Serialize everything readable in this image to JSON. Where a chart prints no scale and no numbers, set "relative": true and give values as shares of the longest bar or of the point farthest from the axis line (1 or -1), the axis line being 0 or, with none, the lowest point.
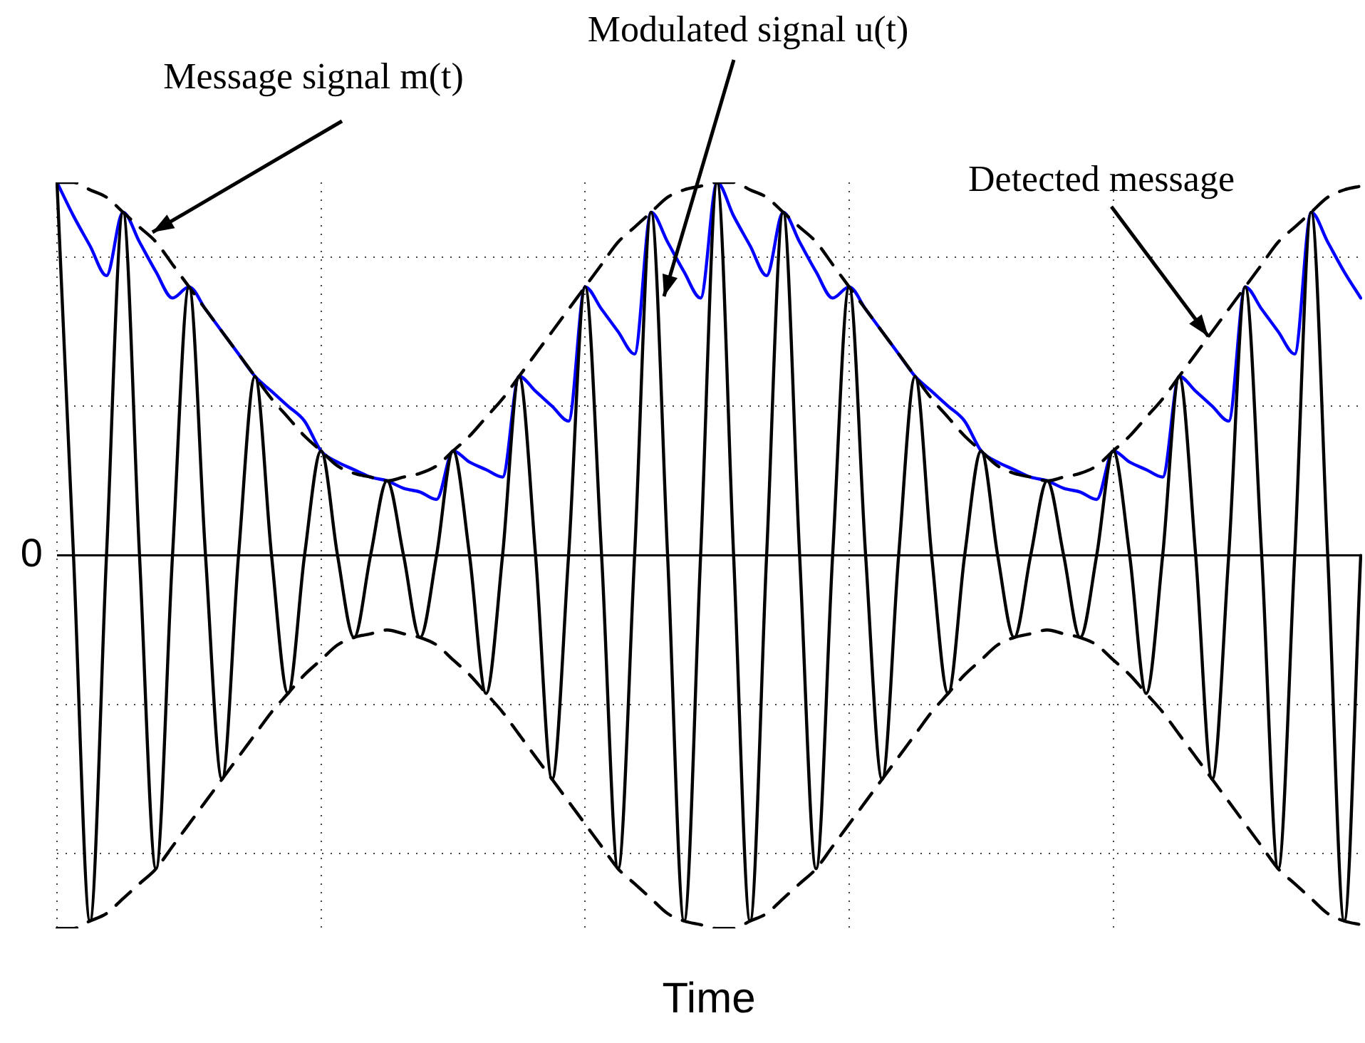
{
  "chart_data": {
    "type": "line",
    "relative": true,
    "xlabel": "Time",
    "grid": true,
    "legend": false,
    "categories": [
      null,
      null,
      null,
      null,
      null,
      null,
      null,
      null,
      null,
      null,
      null,
      null,
      null,
      null,
      null,
      null,
      null,
      null,
      null,
      null,
      null,
      null,
      null,
      null,
      null,
      null,
      null,
      null,
      null,
      null,
      null,
      null,
      null,
      null,
      null,
      null,
      null,
      null,
      null,
      null,
      null,
      null,
      null,
      null,
      null,
      null,
      null,
      null,
      null,
      null,
      null,
      null,
      null,
      null,
      null,
      null,
      null,
      null,
      null,
      null,
      null,
      null,
      null,
      null,
      null,
      null,
      null,
      null,
      null,
      null,
      null,
      null,
      null,
      null,
      null,
      null,
      null,
      null,
      null,
      null
    ],
    "series": [
      {
        "color": "#000000",
        "line_style": "dashed",
        "values": [
          1,
          1,
          0.98,
          0.96,
          0.92,
          0.88,
          0.84,
          0.78,
          0.72,
          0.66,
          0.6,
          0.54,
          0.48,
          0.42,
          0.37,
          0.32,
          0.28,
          0.24,
          0.22,
          0.21,
          0.2,
          0.21,
          0.22,
          0.24,
          0.28,
          0.32,
          0.37,
          0.42,
          0.48,
          0.54,
          0.6,
          0.66,
          0.72,
          0.78,
          0.84,
          0.88,
          0.92,
          0.96,
          0.98,
          0.99,
          1,
          1,
          0.98,
          0.96,
          0.92,
          0.88,
          0.84,
          0.78,
          0.72,
          0.66,
          0.6,
          0.54,
          0.48,
          0.42,
          0.37,
          0.32,
          0.28,
          0.24,
          0.22,
          0.21,
          0.2,
          0.21,
          0.22,
          0.24,
          0.28,
          0.32,
          0.37,
          0.42,
          0.48,
          0.54,
          0.6,
          0.66,
          0.72,
          0.78,
          0.84,
          0.88,
          0.92,
          0.96,
          0.98,
          0.99
        ]
      },
      {
        "color": "#000000",
        "line_style": "dashed",
        "values": [
          -1,
          -1,
          -0.98,
          -0.96,
          -0.92,
          -0.88,
          -0.84,
          -0.78,
          -0.72,
          -0.66,
          -0.6,
          -0.54,
          -0.48,
          -0.42,
          -0.37,
          -0.32,
          -0.28,
          -0.24,
          -0.22,
          -0.21,
          -0.2,
          -0.21,
          -0.22,
          -0.24,
          -0.28,
          -0.32,
          -0.37,
          -0.42,
          -0.48,
          -0.54,
          -0.6,
          -0.66,
          -0.72,
          -0.78,
          -0.84,
          -0.88,
          -0.92,
          -0.96,
          -0.98,
          -0.99,
          -1,
          -1,
          -0.98,
          -0.96,
          -0.92,
          -0.88,
          -0.84,
          -0.78,
          -0.72,
          -0.66,
          -0.6,
          -0.54,
          -0.48,
          -0.42,
          -0.37,
          -0.32,
          -0.28,
          -0.24,
          -0.22,
          -0.21,
          -0.2,
          -0.21,
          -0.22,
          -0.24,
          -0.28,
          -0.32,
          -0.37,
          -0.42,
          -0.48,
          -0.54,
          -0.6,
          -0.66,
          -0.72,
          -0.78,
          -0.84,
          -0.88,
          -0.92,
          -0.96,
          -0.98,
          -0.99
        ]
      },
      {
        "color": "#000000",
        "line_style": "solid",
        "values": [
          1,
          0,
          -0.98,
          0,
          0.92,
          0,
          -0.84,
          0,
          0.72,
          0,
          -0.6,
          0,
          0.48,
          0,
          -0.37,
          0,
          0.28,
          0,
          -0.22,
          0,
          0.2,
          0,
          -0.22,
          0,
          0.28,
          0,
          -0.37,
          0,
          0.48,
          0,
          -0.6,
          0,
          0.72,
          0,
          -0.84,
          0,
          0.92,
          0,
          -0.98,
          0,
          1,
          0,
          -0.98,
          0,
          0.92,
          0,
          -0.84,
          0,
          0.72,
          0,
          -0.6,
          0,
          0.48,
          0,
          -0.37,
          0,
          0.28,
          0,
          -0.22,
          0,
          0.2,
          0,
          -0.22,
          0,
          0.28,
          0,
          -0.37,
          0,
          0.48,
          0,
          -0.6,
          0,
          0.72,
          0,
          -0.84,
          0,
          0.92,
          0,
          -0.98,
          0
        ]
      },
      {
        "color": "#0000ff",
        "line_style": "solid",
        "values": [
          1,
          0.91,
          0.83,
          0.75,
          0.92,
          0.84,
          0.76,
          0.69,
          0.72,
          0.66,
          0.6,
          0.54,
          0.48,
          0.44,
          0.4,
          0.36,
          0.28,
          0.25,
          0.23,
          0.21,
          0.2,
          0.18,
          0.17,
          0.15,
          0.28,
          0.25,
          0.23,
          0.21,
          0.48,
          0.44,
          0.4,
          0.36,
          0.72,
          0.66,
          0.6,
          0.54,
          0.92,
          0.84,
          0.76,
          0.69,
          1,
          0.91,
          0.83,
          0.75,
          0.92,
          0.84,
          0.76,
          0.69,
          0.72,
          0.66,
          0.6,
          0.54,
          0.48,
          0.44,
          0.4,
          0.36,
          0.28,
          0.25,
          0.23,
          0.21,
          0.2,
          0.18,
          0.17,
          0.15,
          0.28,
          0.25,
          0.23,
          0.21,
          0.48,
          0.44,
          0.4,
          0.36,
          0.72,
          0.66,
          0.6,
          0.54,
          0.92,
          0.84,
          0.76,
          0.69
        ]
      }
    ],
    "ref_lines": [
      {
        "axis": "y",
        "value": 0,
        "label": "0"
      }
    ],
    "annotations": [
      "Message signal m(t)",
      "Modulated signal u(t)",
      "Detected message"
    ]
  }
}
